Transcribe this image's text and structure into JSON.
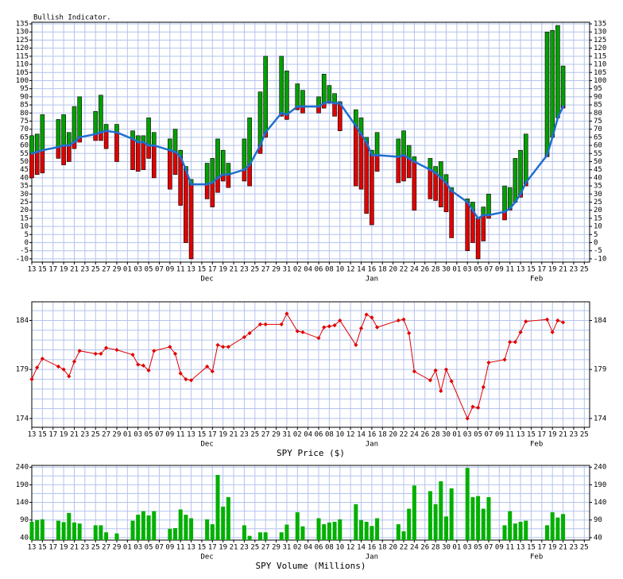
{
  "x_axis": {
    "xlim": [
      0,
      105
    ],
    "x": [
      0,
      1,
      2,
      5,
      6,
      7,
      8,
      9,
      12,
      13,
      14,
      16,
      19,
      20,
      21,
      22,
      23,
      26,
      27,
      28,
      29,
      30,
      33,
      34,
      35,
      36,
      37,
      40,
      41,
      43,
      44,
      47,
      48,
      50,
      51,
      54,
      55,
      56,
      57,
      58,
      61,
      62,
      63,
      64,
      65,
      69,
      70,
      71,
      72,
      75,
      76,
      77,
      78,
      79,
      82,
      83,
      84,
      85,
      86,
      89,
      90,
      91,
      92,
      93,
      97,
      98,
      99,
      100
    ],
    "xticks": [
      {
        "value": 0,
        "label": "13"
      },
      {
        "value": 2,
        "label": "15"
      },
      {
        "value": 4,
        "label": "17"
      },
      {
        "value": 6,
        "label": "19"
      },
      {
        "value": 8,
        "label": "21"
      },
      {
        "value": 10,
        "label": "23"
      },
      {
        "value": 12,
        "label": "25"
      },
      {
        "value": 14,
        "label": "27"
      },
      {
        "value": 16,
        "label": "29"
      },
      {
        "value": 18,
        "label": "01"
      },
      {
        "value": 20,
        "label": "03"
      },
      {
        "value": 22,
        "label": "05"
      },
      {
        "value": 24,
        "label": "07"
      },
      {
        "value": 26,
        "label": "09"
      },
      {
        "value": 28,
        "label": "11"
      },
      {
        "value": 30,
        "label": "13"
      },
      {
        "value": 32,
        "label": "15"
      },
      {
        "value": 34,
        "label": "17"
      },
      {
        "value": 36,
        "label": "19"
      },
      {
        "value": 38,
        "label": "21"
      },
      {
        "value": 40,
        "label": "23"
      },
      {
        "value": 42,
        "label": "25"
      },
      {
        "value": 44,
        "label": "27"
      },
      {
        "value": 46,
        "label": "29"
      },
      {
        "value": 48,
        "label": "31"
      },
      {
        "value": 50,
        "label": "02"
      },
      {
        "value": 52,
        "label": "04"
      },
      {
        "value": 54,
        "label": "06"
      },
      {
        "value": 56,
        "label": "08"
      },
      {
        "value": 58,
        "label": "10"
      },
      {
        "value": 60,
        "label": "12"
      },
      {
        "value": 62,
        "label": "14"
      },
      {
        "value": 64,
        "label": "16"
      },
      {
        "value": 66,
        "label": "18"
      },
      {
        "value": 68,
        "label": "20"
      },
      {
        "value": 70,
        "label": "22"
      },
      {
        "value": 72,
        "label": "24"
      },
      {
        "value": 74,
        "label": "26"
      },
      {
        "value": 76,
        "label": "28"
      },
      {
        "value": 78,
        "label": "30"
      },
      {
        "value": 80,
        "label": "01"
      },
      {
        "value": 82,
        "label": "03"
      },
      {
        "value": 84,
        "label": "05"
      },
      {
        "value": 86,
        "label": "07"
      },
      {
        "value": 88,
        "label": "09"
      },
      {
        "value": 90,
        "label": "11"
      },
      {
        "value": 92,
        "label": "13"
      },
      {
        "value": 94,
        "label": "15"
      },
      {
        "value": 96,
        "label": "17"
      },
      {
        "value": 98,
        "label": "19"
      },
      {
        "value": 100,
        "label": "21"
      },
      {
        "value": 102,
        "label": "23"
      },
      {
        "value": 104,
        "label": "25"
      }
    ],
    "months": [
      {
        "value": 33,
        "label": "Dec"
      },
      {
        "value": 64,
        "label": "Jan"
      },
      {
        "value": 95,
        "label": "Feb"
      }
    ]
  },
  "chart_data": [
    {
      "type": "range_bar",
      "title": "Bullish Indicator.",
      "low": [
        40,
        42,
        43,
        52,
        48,
        50,
        58,
        62,
        63,
        63,
        58,
        50,
        45,
        44,
        45,
        52,
        40,
        33,
        42,
        23,
        0,
        -10,
        27,
        22,
        31,
        38,
        34,
        38,
        35,
        55,
        65,
        78,
        76,
        82,
        80,
        80,
        83,
        86,
        78,
        69,
        35,
        33,
        18,
        11,
        44,
        37,
        38,
        40,
        20,
        27,
        26,
        22,
        19,
        3,
        -5,
        0,
        -10,
        1,
        15,
        14,
        20,
        25,
        28,
        35,
        53,
        65,
        77,
        83
      ],
      "high": [
        66,
        67,
        79,
        76,
        79,
        68,
        84,
        90,
        81,
        91,
        73,
        73,
        69,
        66,
        66,
        77,
        68,
        64,
        70,
        57,
        47,
        39,
        49,
        52,
        64,
        57,
        49,
        64,
        77,
        93,
        115,
        115,
        106,
        98,
        94,
        90,
        104,
        97,
        92,
        87,
        82,
        77,
        65,
        57,
        68,
        64,
        69,
        60,
        53,
        52,
        47,
        50,
        42,
        34,
        27,
        25,
        15,
        22,
        30,
        35,
        34,
        52,
        57,
        67,
        130,
        131,
        134,
        109
      ],
      "ma": [
        55,
        56,
        57,
        59,
        60,
        60,
        62,
        65,
        67,
        68,
        69,
        68,
        64,
        62,
        62,
        60,
        60,
        57,
        56,
        53,
        45,
        36,
        36,
        37,
        40,
        42,
        42,
        45,
        48,
        60,
        68,
        80,
        79,
        84,
        84,
        84,
        86,
        87,
        86,
        86,
        72,
        67,
        62,
        54,
        54,
        53,
        54,
        52,
        50,
        45,
        43,
        40,
        37,
        32,
        25,
        20,
        15,
        17,
        17,
        19,
        21,
        25,
        30,
        37,
        54,
        65,
        77,
        84
      ],
      "up_color": "#00a000",
      "down_color": "#e00000",
      "line_color": "#1f6fd0",
      "ylim": [
        -12,
        136
      ],
      "yticks": [
        -10,
        -5,
        0,
        5,
        10,
        15,
        20,
        25,
        30,
        35,
        40,
        45,
        50,
        55,
        60,
        65,
        70,
        75,
        80,
        85,
        90,
        95,
        100,
        105,
        110,
        115,
        120,
        125,
        130,
        135
      ]
    },
    {
      "type": "line",
      "axis_label": "SPY Price ($)",
      "values": [
        178.0,
        179.2,
        180.1,
        179.3,
        179.0,
        178.3,
        179.8,
        180.9,
        180.6,
        180.6,
        181.2,
        181.0,
        180.5,
        179.5,
        179.4,
        178.9,
        180.9,
        181.3,
        180.6,
        178.6,
        178.0,
        177.9,
        179.3,
        178.8,
        181.5,
        181.3,
        181.3,
        182.3,
        182.7,
        183.6,
        183.6,
        183.6,
        184.7,
        182.9,
        182.8,
        182.2,
        183.3,
        183.4,
        183.5,
        184.0,
        181.5,
        183.2,
        184.6,
        184.3,
        183.3,
        184.0,
        184.1,
        182.7,
        178.8,
        177.9,
        178.9,
        176.8,
        179.0,
        177.8,
        174.0,
        175.2,
        175.1,
        177.2,
        179.7,
        180.0,
        181.8,
        181.8,
        182.8,
        183.9,
        184.1,
        182.8,
        184.0,
        183.8
      ],
      "color": "#e00000",
      "ylim": [
        173.1,
        185.9
      ],
      "yticks": [
        174,
        179,
        184
      ],
      "ygrid": [
        174,
        175,
        176,
        177,
        178,
        179,
        180,
        181,
        182,
        183,
        184,
        185
      ]
    },
    {
      "type": "bar",
      "axis_label": "SPY Volume (Millions)",
      "values": [
        85,
        90,
        92,
        88,
        84,
        110,
        83,
        80,
        75,
        75,
        55,
        52,
        88,
        105,
        115,
        103,
        115,
        65,
        67,
        120,
        105,
        95,
        92,
        78,
        218,
        128,
        155,
        75,
        45,
        55,
        55,
        55,
        77,
        112,
        72,
        95,
        78,
        83,
        85,
        92,
        135,
        90,
        85,
        73,
        95,
        78,
        58,
        122,
        188,
        172,
        135,
        200,
        100,
        180,
        238,
        155,
        158,
        122,
        155,
        75,
        115,
        80,
        85,
        88,
        75,
        112,
        97,
        107
      ],
      "color": "#00b000",
      "ylim": [
        33,
        245
      ],
      "yticks": [
        40,
        90,
        140,
        190,
        240
      ],
      "ygrid": [
        40,
        65,
        90,
        115,
        140,
        165,
        190,
        215,
        240
      ]
    }
  ]
}
